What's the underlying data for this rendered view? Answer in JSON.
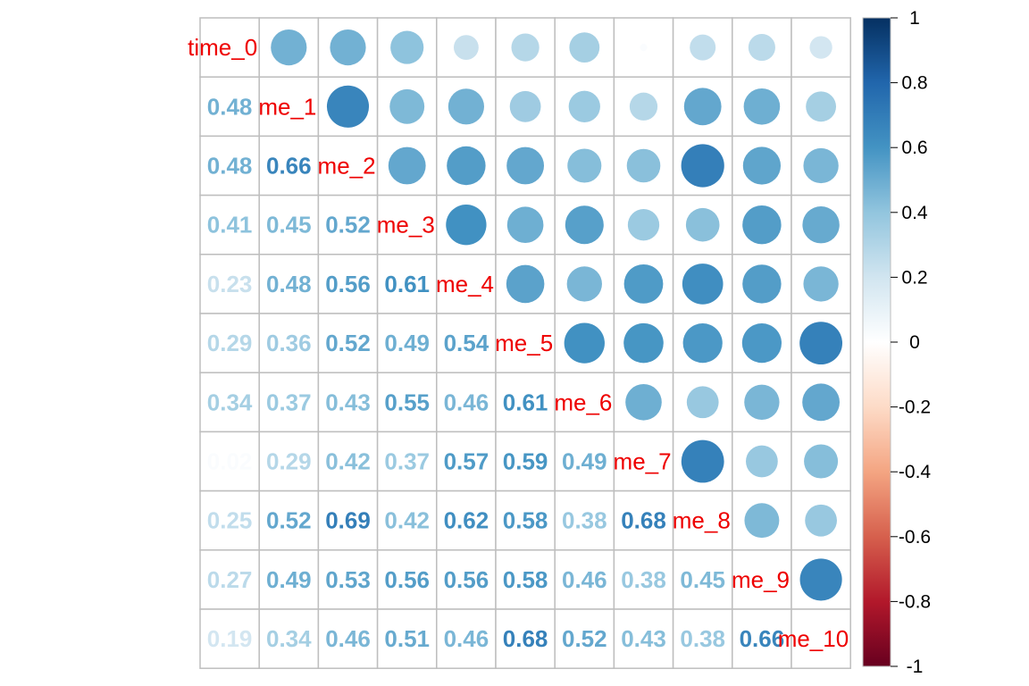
{
  "chart_data": {
    "type": "heatmap",
    "method": "mixed",
    "upper": "circle",
    "lower": "number",
    "variables": [
      "time_0",
      "me_1",
      "me_2",
      "me_3",
      "me_4",
      "me_5",
      "me_6",
      "me_7",
      "me_8",
      "me_9",
      "me_10"
    ],
    "matrix": [
      [
        1.0,
        0.48,
        0.48,
        0.41,
        0.23,
        0.29,
        0.34,
        0.02,
        0.25,
        0.27,
        0.19
      ],
      [
        0.48,
        1.0,
        0.66,
        0.45,
        0.48,
        0.36,
        0.37,
        0.29,
        0.52,
        0.49,
        0.34
      ],
      [
        0.48,
        0.66,
        1.0,
        0.52,
        0.56,
        0.52,
        0.43,
        0.42,
        0.69,
        0.53,
        0.46
      ],
      [
        0.41,
        0.45,
        0.52,
        1.0,
        0.61,
        0.49,
        0.55,
        0.37,
        0.42,
        0.56,
        0.51
      ],
      [
        0.23,
        0.48,
        0.56,
        0.61,
        1.0,
        0.54,
        0.46,
        0.57,
        0.62,
        0.56,
        0.46
      ],
      [
        0.29,
        0.36,
        0.52,
        0.49,
        0.54,
        1.0,
        0.61,
        0.59,
        0.58,
        0.58,
        0.68
      ],
      [
        0.34,
        0.37,
        0.43,
        0.55,
        0.46,
        0.61,
        1.0,
        0.49,
        0.38,
        0.46,
        0.52
      ],
      [
        0.02,
        0.29,
        0.42,
        0.37,
        0.57,
        0.59,
        0.49,
        1.0,
        0.68,
        0.38,
        0.43
      ],
      [
        0.25,
        0.52,
        0.69,
        0.42,
        0.62,
        0.58,
        0.38,
        0.68,
        1.0,
        0.45,
        0.38
      ],
      [
        0.27,
        0.49,
        0.53,
        0.56,
        0.56,
        0.58,
        0.46,
        0.38,
        0.45,
        1.0,
        0.66
      ],
      [
        0.19,
        0.34,
        0.46,
        0.51,
        0.46,
        0.68,
        0.52,
        0.43,
        0.38,
        0.66,
        1.0
      ]
    ],
    "colorbar": {
      "range": [
        -1,
        1
      ],
      "tick_labels": [
        "1",
        "0.8",
        "0.6",
        "0.4",
        "0.2",
        "0",
        "-0.2",
        "-0.4",
        "-0.6",
        "-0.8",
        "-1"
      ],
      "tick_values": [
        1,
        0.8,
        0.6,
        0.4,
        0.2,
        0,
        -0.2,
        -0.4,
        -0.6,
        -0.8,
        -1
      ],
      "colors": [
        "#67001f",
        "#b2182b",
        "#d6604d",
        "#f4a582",
        "#fddbc7",
        "#ffffff",
        "#d1e5f0",
        "#92c5de",
        "#4393c3",
        "#2166ac",
        "#053061"
      ]
    },
    "label_color": "#ee0000",
    "grid_color": "#bebebe",
    "grid": true,
    "legend_position": "right",
    "title": "",
    "xlabel": "",
    "ylabel": ""
  }
}
